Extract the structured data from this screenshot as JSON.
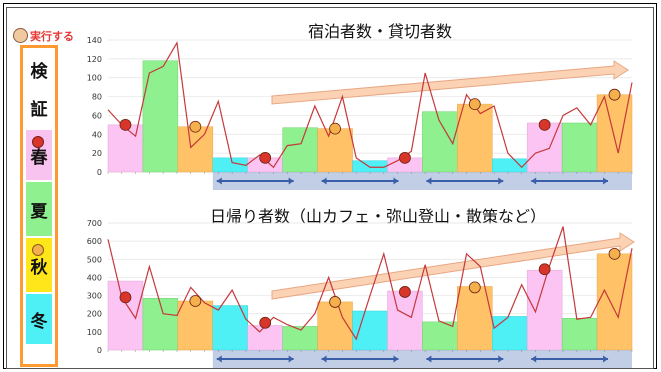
{
  "badge_label": "実行する",
  "legend": {
    "items": [
      "検",
      "証",
      "春",
      "夏",
      "秋",
      "冬"
    ],
    "colors": {
      "spring": "#f9c3ef",
      "summer": "#8ef08e",
      "autumn": "#ffe61a",
      "winter": "#4ff0f5"
    }
  },
  "chart_data": [
    {
      "type": "bar",
      "title": "宿泊者数・貸切者数",
      "ylim": [
        0,
        140
      ],
      "yticks": [
        0,
        20,
        40,
        60,
        80,
        100,
        120,
        140
      ],
      "bars": [
        {
          "season": "spring",
          "value": 50
        },
        {
          "season": "summer",
          "value": 118
        },
        {
          "season": "autumn",
          "value": 48
        },
        {
          "season": "winter",
          "value": 15
        },
        {
          "season": "spring",
          "value": 15
        },
        {
          "season": "summer",
          "value": 47
        },
        {
          "season": "autumn",
          "value": 46
        },
        {
          "season": "winter",
          "value": 12
        },
        {
          "season": "spring",
          "value": 15
        },
        {
          "season": "summer",
          "value": 64
        },
        {
          "season": "autumn",
          "value": 72
        },
        {
          "season": "winter",
          "value": 14
        },
        {
          "season": "spring",
          "value": 52
        },
        {
          "season": "summer",
          "value": 52
        },
        {
          "season": "autumn",
          "value": 82
        }
      ],
      "line": [
        66,
        50,
        38,
        105,
        112,
        137,
        26,
        40,
        75,
        10,
        7,
        18,
        5,
        28,
        30,
        70,
        38,
        80,
        15,
        5,
        5,
        12,
        22,
        105,
        55,
        30,
        82,
        62,
        70,
        20,
        5,
        20,
        25,
        60,
        68,
        50,
        80,
        20,
        95
      ],
      "markers": [
        50,
        48,
        15,
        46,
        15,
        72,
        50,
        82
      ]
    },
    {
      "type": "bar",
      "title": "日帰り者数（山カフェ・弥山登山・散策など）",
      "ylim": [
        0,
        700
      ],
      "yticks": [
        0,
        100,
        200,
        300,
        400,
        500,
        600,
        700
      ],
      "bars": [
        {
          "season": "spring",
          "value": 380
        },
        {
          "season": "summer",
          "value": 285
        },
        {
          "season": "autumn",
          "value": 270
        },
        {
          "season": "winter",
          "value": 245
        },
        {
          "season": "spring",
          "value": 135
        },
        {
          "season": "summer",
          "value": 130
        },
        {
          "season": "autumn",
          "value": 265
        },
        {
          "season": "winter",
          "value": 215
        },
        {
          "season": "spring",
          "value": 325
        },
        {
          "season": "summer",
          "value": 155
        },
        {
          "season": "autumn",
          "value": 350
        },
        {
          "season": "winter",
          "value": 185
        },
        {
          "season": "spring",
          "value": 440
        },
        {
          "season": "summer",
          "value": 175
        },
        {
          "season": "autumn",
          "value": 530
        }
      ],
      "line": [
        610,
        290,
        175,
        460,
        200,
        190,
        345,
        260,
        220,
        330,
        170,
        100,
        180,
        140,
        110,
        200,
        400,
        180,
        60,
        300,
        530,
        220,
        180,
        470,
        160,
        130,
        530,
        460,
        120,
        180,
        360,
        210,
        460,
        680,
        170,
        180,
        330,
        180,
        560
      ],
      "markers": [
        290,
        270,
        150,
        265,
        320,
        345,
        445,
        530
      ]
    }
  ]
}
